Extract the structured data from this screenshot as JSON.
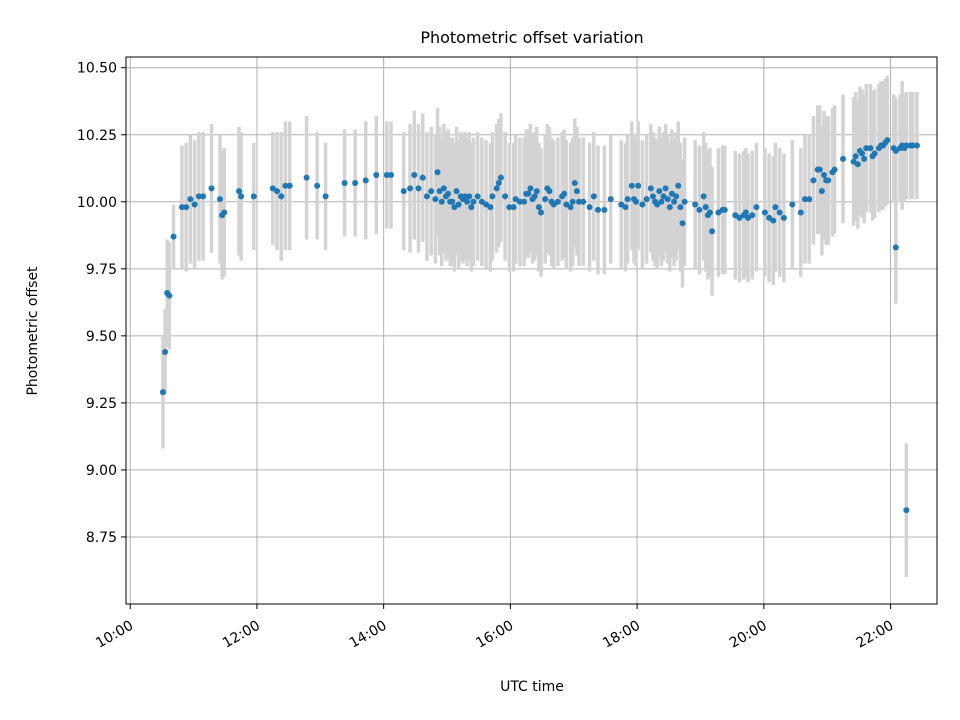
{
  "chart_data": {
    "type": "scatter",
    "title": "Photometric offset variation",
    "xlabel": "UTC time",
    "ylabel": "Photometric offset",
    "x_unit": "hours UTC",
    "xlim": [
      "9:56",
      "22:44"
    ],
    "ylim": [
      8.5,
      10.54
    ],
    "grid": true,
    "x_ticks": [
      "10:00",
      "12:00",
      "14:00",
      "16:00",
      "18:00",
      "20:00",
      "22:00"
    ],
    "y_ticks": [
      "8.75",
      "9.00",
      "9.25",
      "9.50",
      "9.75",
      "10.00",
      "10.25",
      "10.50"
    ],
    "colors": {
      "points": "#1f77b4",
      "errorbars": "#d3d3d3",
      "grid": "#b0b0b0"
    },
    "series": [
      {
        "points": [
          [
            "10:31",
            9.29,
            0.21
          ],
          [
            "10:33",
            9.44,
            0.16
          ],
          [
            "10:35",
            9.66,
            0.2
          ],
          [
            "10:37",
            9.65,
            0.2
          ],
          [
            "10:41",
            9.87,
            0.12
          ],
          [
            "10:49",
            9.98,
            0.23
          ],
          [
            "10:53",
            9.98,
            0.24
          ],
          [
            "10:57",
            10.01,
            0.24
          ],
          [
            "11:01",
            9.99,
            0.24
          ],
          [
            "11:05",
            10.02,
            0.24
          ],
          [
            "11:09",
            10.02,
            0.24
          ],
          [
            "11:17",
            10.05,
            0.24
          ],
          [
            "11:25",
            10.01,
            0.24
          ],
          [
            "11:27",
            9.95,
            0.24
          ],
          [
            "11:29",
            9.96,
            0.24
          ],
          [
            "11:43",
            10.04,
            0.24
          ],
          [
            "11:45",
            10.02,
            0.24
          ],
          [
            "11:57",
            10.02,
            0.2
          ],
          [
            "12:15",
            10.05,
            0.21
          ],
          [
            "12:19",
            10.04,
            0.22
          ],
          [
            "12:23",
            10.02,
            0.24
          ],
          [
            "12:27",
            10.06,
            0.24
          ],
          [
            "12:31",
            10.06,
            0.24
          ],
          [
            "12:47",
            10.09,
            0.23
          ],
          [
            "12:57",
            10.06,
            0.2
          ],
          [
            "13:05",
            10.02,
            0.2
          ],
          [
            "13:23",
            10.07,
            0.2
          ],
          [
            "13:33",
            10.07,
            0.2
          ],
          [
            "13:43",
            10.08,
            0.22
          ],
          [
            "13:53",
            10.1,
            0.22
          ],
          [
            "14:03",
            10.1,
            0.2
          ],
          [
            "14:07",
            10.1,
            0.2
          ],
          [
            "14:19",
            10.04,
            0.22
          ],
          [
            "14:25",
            10.05,
            0.24
          ],
          [
            "14:29",
            10.1,
            0.24
          ],
          [
            "14:33",
            10.05,
            0.24
          ],
          [
            "14:37",
            10.09,
            0.24
          ],
          [
            "14:41",
            10.02,
            0.24
          ],
          [
            "14:45",
            10.04,
            0.24
          ],
          [
            "14:49",
            10.01,
            0.24
          ],
          [
            "14:51",
            10.11,
            0.24
          ],
          [
            "14:53",
            10.04,
            0.24
          ],
          [
            "14:55",
            10.0,
            0.24
          ],
          [
            "14:57",
            10.05,
            0.24
          ],
          [
            "14:59",
            10.02,
            0.24
          ],
          [
            "15:01",
            10.03,
            0.24
          ],
          [
            "15:03",
            10.0,
            0.24
          ],
          [
            "15:05",
            10.0,
            0.24
          ],
          [
            "15:07",
            9.98,
            0.24
          ],
          [
            "15:09",
            10.04,
            0.24
          ],
          [
            "15:11",
            9.99,
            0.24
          ],
          [
            "15:13",
            10.02,
            0.24
          ],
          [
            "15:15",
            10.01,
            0.24
          ],
          [
            "15:17",
            10.02,
            0.24
          ],
          [
            "15:19",
            10.0,
            0.24
          ],
          [
            "15:21",
            10.02,
            0.24
          ],
          [
            "15:23",
            9.98,
            0.24
          ],
          [
            "15:25",
            10.0,
            0.24
          ],
          [
            "15:29",
            10.02,
            0.24
          ],
          [
            "15:33",
            10.0,
            0.24
          ],
          [
            "15:37",
            9.99,
            0.24
          ],
          [
            "15:41",
            9.98,
            0.24
          ],
          [
            "15:43",
            10.02,
            0.24
          ],
          [
            "15:47",
            10.05,
            0.24
          ],
          [
            "15:49",
            10.07,
            0.24
          ],
          [
            "15:51",
            10.09,
            0.24
          ],
          [
            "15:55",
            10.02,
            0.24
          ],
          [
            "15:59",
            9.98,
            0.24
          ],
          [
            "16:03",
            9.98,
            0.24
          ],
          [
            "16:05",
            10.01,
            0.24
          ],
          [
            "16:09",
            10.0,
            0.24
          ],
          [
            "16:13",
            10.0,
            0.24
          ],
          [
            "16:15",
            10.03,
            0.24
          ],
          [
            "16:17",
            10.03,
            0.24
          ],
          [
            "16:19",
            10.05,
            0.24
          ],
          [
            "16:21",
            10.01,
            0.24
          ],
          [
            "16:23",
            10.02,
            0.24
          ],
          [
            "16:25",
            10.04,
            0.24
          ],
          [
            "16:27",
            9.98,
            0.24
          ],
          [
            "16:29",
            9.96,
            0.24
          ],
          [
            "16:33",
            10.01,
            0.24
          ],
          [
            "16:35",
            10.05,
            0.24
          ],
          [
            "16:37",
            10.04,
            0.24
          ],
          [
            "16:39",
            10.0,
            0.24
          ],
          [
            "16:41",
            9.99,
            0.24
          ],
          [
            "16:45",
            10.0,
            0.24
          ],
          [
            "16:49",
            10.02,
            0.24
          ],
          [
            "16:51",
            10.03,
            0.24
          ],
          [
            "16:53",
            9.99,
            0.24
          ],
          [
            "16:57",
            9.98,
            0.24
          ],
          [
            "16:59",
            10.0,
            0.24
          ],
          [
            "17:01",
            10.07,
            0.24
          ],
          [
            "17:03",
            10.04,
            0.24
          ],
          [
            "17:05",
            10.0,
            0.24
          ],
          [
            "17:09",
            10.0,
            0.24
          ],
          [
            "17:15",
            9.98,
            0.24
          ],
          [
            "17:19",
            10.02,
            0.24
          ],
          [
            "17:23",
            9.97,
            0.24
          ],
          [
            "17:29",
            9.97,
            0.24
          ],
          [
            "17:35",
            10.01,
            0.24
          ],
          [
            "17:45",
            9.99,
            0.24
          ],
          [
            "17:49",
            9.98,
            0.24
          ],
          [
            "17:51",
            10.01,
            0.24
          ],
          [
            "17:55",
            10.06,
            0.24
          ],
          [
            "17:57",
            10.01,
            0.24
          ],
          [
            "17:59",
            10.0,
            0.24
          ],
          [
            "18:01",
            10.06,
            0.24
          ],
          [
            "18:05",
            9.99,
            0.24
          ],
          [
            "18:09",
            10.01,
            0.24
          ],
          [
            "18:13",
            10.05,
            0.24
          ],
          [
            "18:15",
            10.02,
            0.24
          ],
          [
            "18:17",
            10.0,
            0.24
          ],
          [
            "18:19",
            9.99,
            0.24
          ],
          [
            "18:21",
            10.04,
            0.24
          ],
          [
            "18:23",
            10.0,
            0.24
          ],
          [
            "18:25",
            10.02,
            0.24
          ],
          [
            "18:27",
            10.05,
            0.24
          ],
          [
            "18:29",
            10.01,
            0.24
          ],
          [
            "18:31",
            9.98,
            0.24
          ],
          [
            "18:33",
            10.03,
            0.24
          ],
          [
            "18:35",
            10.0,
            0.24
          ],
          [
            "18:37",
            10.02,
            0.24
          ],
          [
            "18:39",
            10.06,
            0.24
          ],
          [
            "18:41",
            9.98,
            0.24
          ],
          [
            "18:43",
            9.92,
            0.24
          ],
          [
            "18:45",
            10.0,
            0.24
          ],
          [
            "18:55",
            9.99,
            0.24
          ],
          [
            "18:59",
            9.97,
            0.24
          ],
          [
            "19:03",
            10.02,
            0.24
          ],
          [
            "19:05",
            9.98,
            0.24
          ],
          [
            "19:07",
            9.95,
            0.24
          ],
          [
            "19:09",
            9.96,
            0.24
          ],
          [
            "19:11",
            9.89,
            0.24
          ],
          [
            "19:17",
            9.96,
            0.24
          ],
          [
            "19:21",
            9.97,
            0.24
          ],
          [
            "19:23",
            9.97,
            0.24
          ],
          [
            "19:33",
            9.95,
            0.24
          ],
          [
            "19:37",
            9.94,
            0.24
          ],
          [
            "19:41",
            9.95,
            0.24
          ],
          [
            "19:43",
            9.96,
            0.24
          ],
          [
            "19:45",
            9.94,
            0.24
          ],
          [
            "19:49",
            9.95,
            0.24
          ],
          [
            "19:53",
            9.98,
            0.24
          ],
          [
            "20:01",
            9.96,
            0.24
          ],
          [
            "20:05",
            9.94,
            0.24
          ],
          [
            "20:09",
            9.93,
            0.24
          ],
          [
            "20:11",
            9.98,
            0.24
          ],
          [
            "20:15",
            9.96,
            0.24
          ],
          [
            "20:19",
            9.94,
            0.24
          ],
          [
            "20:27",
            9.99,
            0.24
          ],
          [
            "20:35",
            9.96,
            0.24
          ],
          [
            "20:39",
            10.01,
            0.24
          ],
          [
            "20:43",
            10.01,
            0.24
          ],
          [
            "20:47",
            10.08,
            0.24
          ],
          [
            "20:51",
            10.12,
            0.24
          ],
          [
            "20:53",
            10.12,
            0.24
          ],
          [
            "20:55",
            10.04,
            0.24
          ],
          [
            "20:57",
            10.1,
            0.24
          ],
          [
            "20:59",
            10.08,
            0.24
          ],
          [
            "21:01",
            10.08,
            0.24
          ],
          [
            "21:05",
            10.11,
            0.24
          ],
          [
            "21:07",
            10.12,
            0.24
          ],
          [
            "21:15",
            10.16,
            0.24
          ],
          [
            "21:25",
            10.15,
            0.24
          ],
          [
            "21:27",
            10.17,
            0.24
          ],
          [
            "21:29",
            10.14,
            0.24
          ],
          [
            "21:31",
            10.19,
            0.24
          ],
          [
            "21:33",
            10.18,
            0.24
          ],
          [
            "21:35",
            10.16,
            0.24
          ],
          [
            "21:37",
            10.2,
            0.24
          ],
          [
            "21:41",
            10.2,
            0.24
          ],
          [
            "21:43",
            10.17,
            0.24
          ],
          [
            "21:45",
            10.18,
            0.24
          ],
          [
            "21:49",
            10.2,
            0.24
          ],
          [
            "21:51",
            10.21,
            0.24
          ],
          [
            "21:53",
            10.21,
            0.24
          ],
          [
            "21:55",
            10.22,
            0.24
          ],
          [
            "21:57",
            10.23,
            0.24
          ],
          [
            "22:03",
            10.2,
            0.2
          ],
          [
            "22:05",
            10.19,
            0.2
          ],
          [
            "22:09",
            10.2,
            0.2
          ],
          [
            "22:11",
            10.21,
            0.24
          ],
          [
            "22:13",
            10.2,
            0.2
          ],
          [
            "22:15",
            10.21,
            0.2
          ],
          [
            "22:19",
            10.21,
            0.2
          ],
          [
            "22:21",
            10.21,
            0.2
          ],
          [
            "22:25",
            10.21,
            0.2
          ],
          [
            "22:05",
            9.83,
            0.21
          ],
          [
            "22:15",
            8.85,
            0.25
          ]
        ]
      }
    ]
  }
}
